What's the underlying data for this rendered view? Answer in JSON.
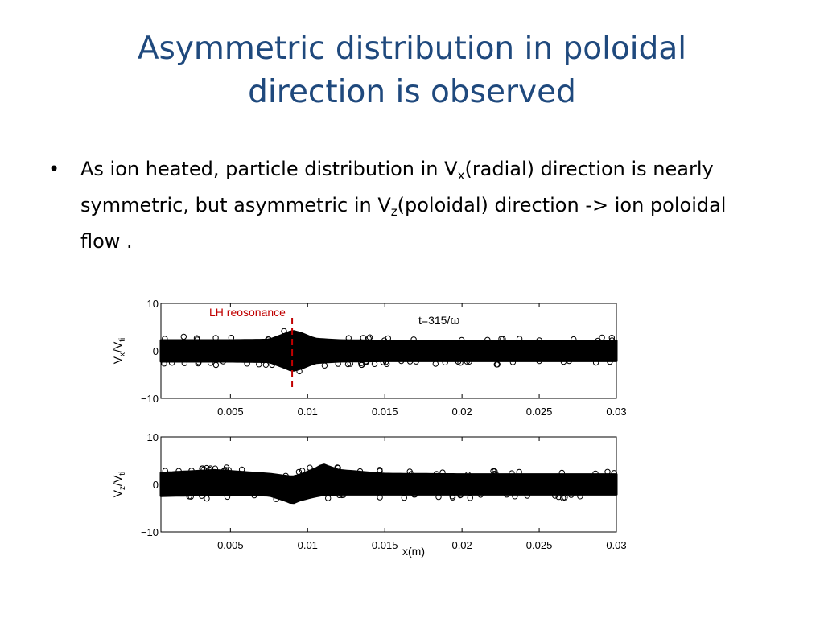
{
  "slide": {
    "title_line1": "Asymmetric distribution in poloidal",
    "title_line2": "direction is observed",
    "bullet_symbol": "•",
    "bullet": {
      "p1": "As ion heated,  particle distribution in  V",
      "s1": "x",
      "p2": "(radial) direction is nearly  symmetric, but asymmetric in V",
      "s2": "z",
      "p3": "(poloidal) direction -> ion poloidal flow ."
    }
  },
  "chart_data": [
    {
      "type": "scatter",
      "title": "",
      "ylabel_main": "V",
      "ylabel_sub": "x",
      "ylabel_mid": "/V",
      "ylabel_sub2": "ti",
      "xlim": [
        0.0005,
        0.03
      ],
      "ylim": [
        -10,
        10
      ],
      "xticks": [
        0.005,
        0.01,
        0.015,
        0.02,
        0.025,
        0.03
      ],
      "xtick_labels": [
        "0.005",
        "0.01",
        "0.015",
        "0.02",
        "0.025",
        "0.03"
      ],
      "yticks": [
        -10,
        0,
        10
      ],
      "ytick_labels": [
        "−10",
        "0",
        "10"
      ],
      "annotation_label": "LH reosonance",
      "annotation_x": 0.009,
      "annotation_color": "#c00000",
      "time_label_prefix": "t=315/",
      "time_label_symbol": "ω",
      "envelope": {
        "x": [
          0.0005,
          0.005,
          0.0075,
          0.0085,
          0.009,
          0.0095,
          0.0105,
          0.012,
          0.015,
          0.02,
          0.025,
          0.03
        ],
        "y_upper": [
          2.2,
          2.2,
          2.3,
          3.5,
          4.2,
          3.8,
          2.5,
          2.2,
          2.1,
          2.1,
          2.1,
          2.1
        ],
        "y_lower": [
          -2.2,
          -2.2,
          -2.3,
          -3.5,
          -4.2,
          -3.8,
          -2.5,
          -2.2,
          -2.1,
          -2.1,
          -2.1,
          -2.1
        ]
      }
    },
    {
      "type": "scatter",
      "title": "",
      "xlabel": "x(m)",
      "ylabel_main": "V",
      "ylabel_sub": "z",
      "ylabel_mid": "/V",
      "ylabel_sub2": "ti",
      "xlim": [
        0.0005,
        0.03
      ],
      "ylim": [
        -10,
        10
      ],
      "xticks": [
        0.005,
        0.01,
        0.015,
        0.02,
        0.025,
        0.03
      ],
      "xtick_labels": [
        "0.005",
        "0.01",
        "0.015",
        "0.02",
        "0.025",
        "0.03"
      ],
      "yticks": [
        -10,
        0,
        10
      ],
      "ytick_labels": [
        "−10",
        "0",
        "10"
      ],
      "envelope": {
        "x": [
          0.0005,
          0.004,
          0.0075,
          0.0085,
          0.009,
          0.0095,
          0.0105,
          0.011,
          0.012,
          0.015,
          0.02,
          0.03
        ],
        "y_upper": [
          2.4,
          3.0,
          2.2,
          1.8,
          1.6,
          2.0,
          3.3,
          4.2,
          3.0,
          2.2,
          2.1,
          2.1
        ],
        "y_lower": [
          -2.4,
          -2.2,
          -2.3,
          -3.3,
          -4.0,
          -3.3,
          -2.5,
          -2.2,
          -2.1,
          -2.1,
          -2.1,
          -2.1
        ]
      }
    }
  ]
}
